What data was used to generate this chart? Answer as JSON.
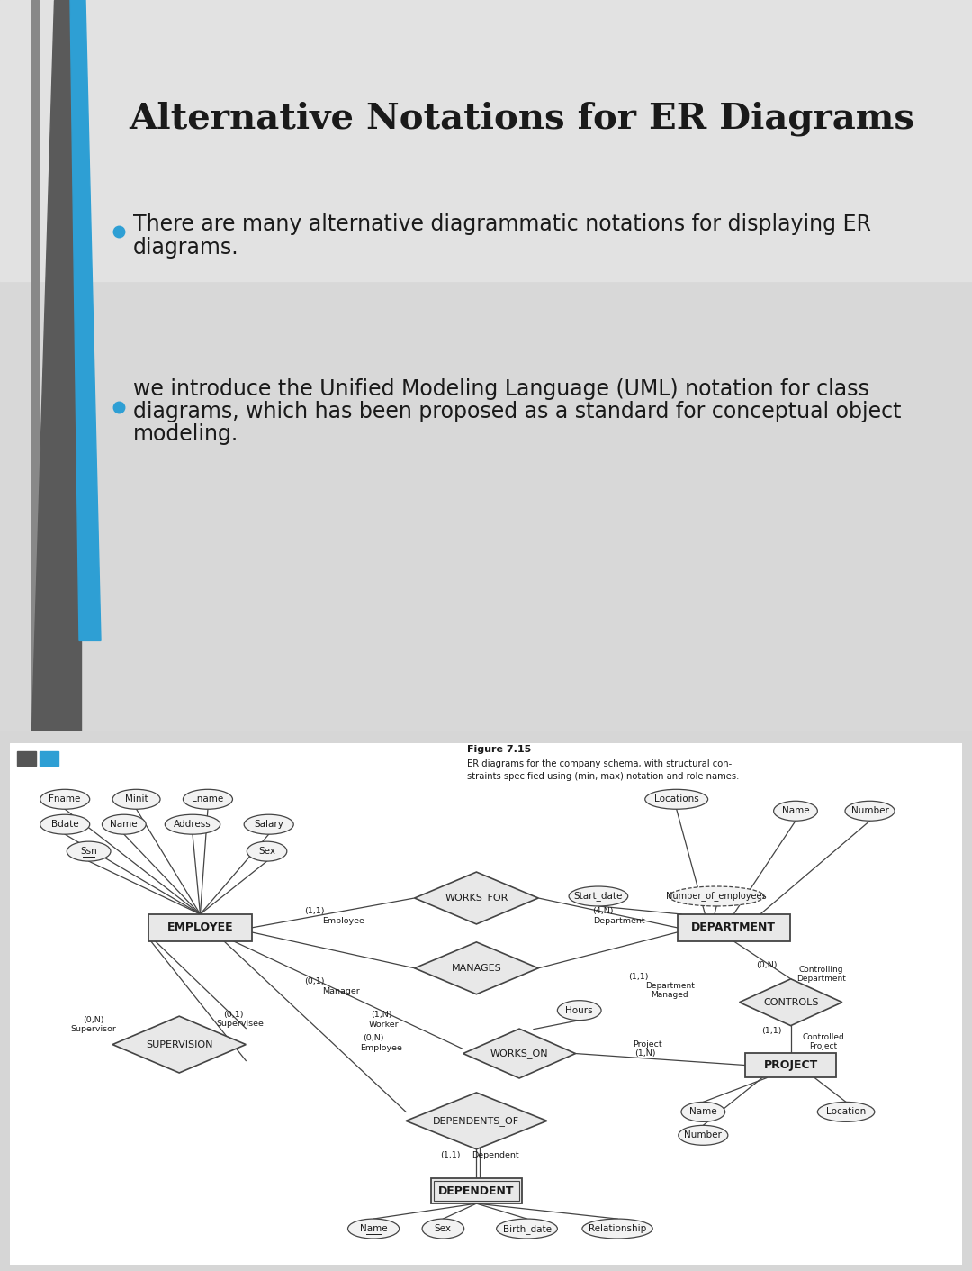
{
  "title": "Alternative Notations for ER Diagrams",
  "bullet1_line1": "There are many alternative diagrammatic notations for displaying ER",
  "bullet1_line2": "diagrams.",
  "bullet2_line1": "we introduce the Unified Modeling Language (UML) notation for class",
  "bullet2_line2": "diagrams, which has been proposed as a standard for conceptual object",
  "bullet2_line3": "modeling.",
  "fig_caption_bold": "Figure 7.15",
  "fig_caption": "ER diagrams for the company schema, with structural con-\nstraints specified using (min, max) notation and role names.",
  "slide_bg": "#d6d6d6",
  "accent_blue": "#2e9fd4",
  "accent_darkgray": "#4a4a4a",
  "white": "#ffffff",
  "diagram_bg": "#ffffff",
  "entity_fill": "#e8e8e8",
  "entity_edge": "#444444",
  "relation_fill": "#e8e8e8",
  "attr_fill": "#f2f2f2",
  "text_dark": "#1a1a1a"
}
